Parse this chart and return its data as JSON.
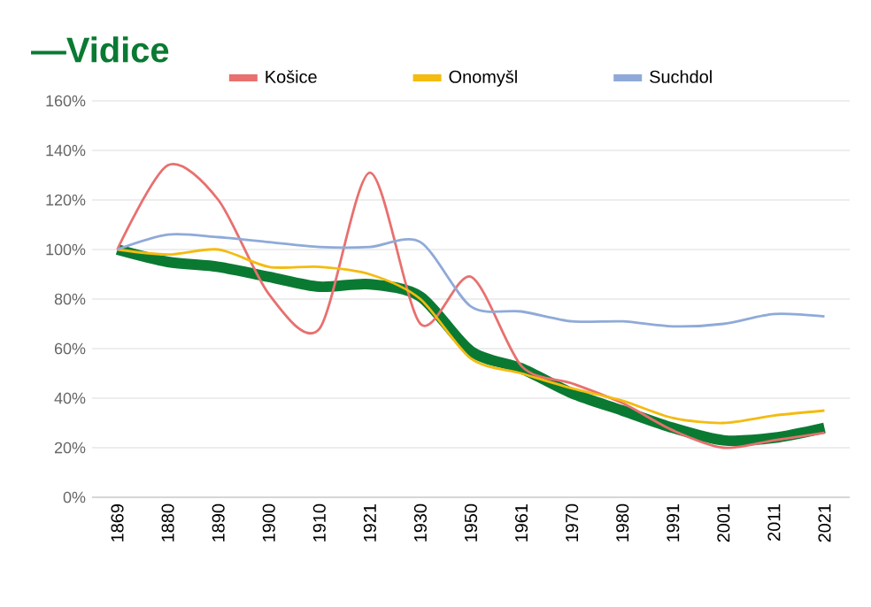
{
  "chart_data": {
    "type": "line",
    "title": "—Vidice",
    "categories": [
      "1869",
      "1880",
      "1890",
      "1900",
      "1910",
      "1921",
      "1930",
      "1950",
      "1961",
      "1970",
      "1980",
      "1991",
      "2001",
      "2011",
      "2021"
    ],
    "series": [
      {
        "color": "#0a7a32",
        "values": [
          100,
          95,
          93,
          89,
          85,
          86,
          81,
          59,
          52,
          42,
          35,
          28,
          23,
          24,
          28
        ]
      },
      {
        "name": "Košice",
        "color": "#e8706e",
        "values": [
          100,
          134,
          120,
          82,
          68,
          131,
          70,
          89,
          53,
          46,
          38,
          27,
          20,
          23,
          26
        ]
      },
      {
        "name": "Onomyšl",
        "color": "#f4bb10",
        "values": [
          100,
          98,
          100,
          93,
          93,
          90,
          80,
          56,
          50,
          44,
          39,
          32,
          30,
          33,
          35
        ]
      },
      {
        "name": "Suchdol",
        "color": "#8faad8",
        "values": [
          100,
          106,
          105,
          103,
          101,
          101,
          103,
          77,
          75,
          71,
          71,
          69,
          70,
          74,
          73
        ]
      }
    ],
    "ylim": [
      0,
      160
    ],
    "yticks": [
      {
        "value": 0,
        "label": "0%"
      },
      {
        "value": 20,
        "label": "20%"
      },
      {
        "value": 40,
        "label": "40%"
      },
      {
        "value": 60,
        "label": "60%"
      },
      {
        "value": 80,
        "label": "80%"
      },
      {
        "value": 100,
        "label": "100%"
      },
      {
        "value": 120,
        "label": "120%"
      },
      {
        "value": 140,
        "label": "140%"
      },
      {
        "value": 160,
        "label": "160%"
      }
    ],
    "grid": "y",
    "legend": "top",
    "marker": "none",
    "line_style": "solid"
  }
}
